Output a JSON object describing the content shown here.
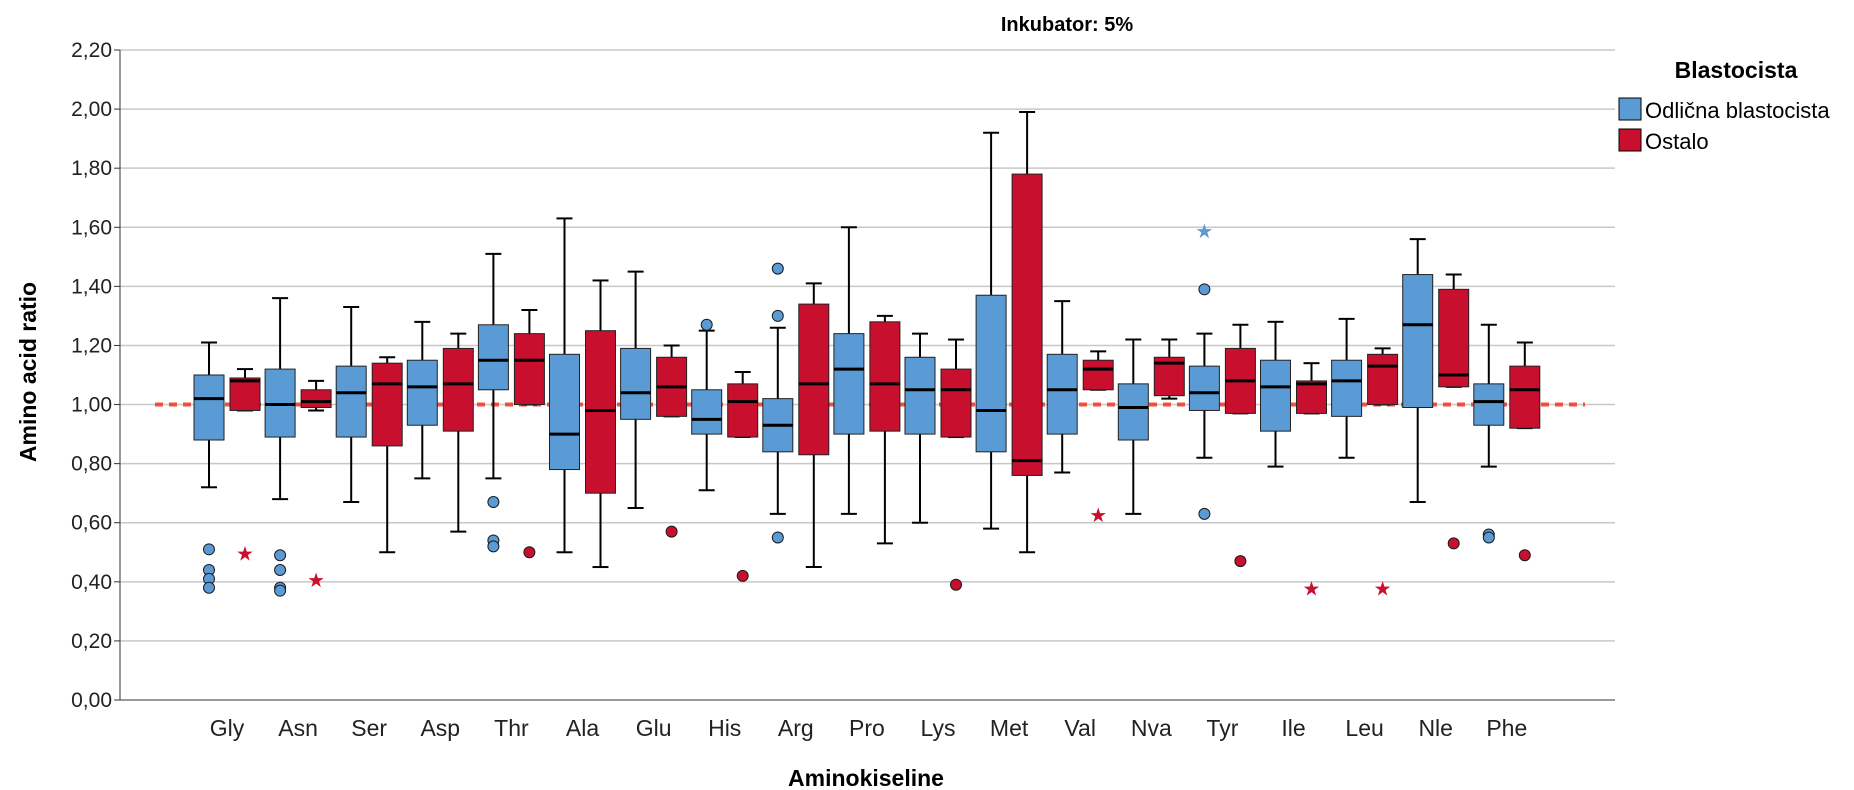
{
  "chart_data": {
    "type": "boxplot",
    "title": "Inkubator: 5%",
    "xlabel": "Aminokiseline",
    "ylabel": "Amino acid ratio",
    "ylim": [
      0,
      2.2
    ],
    "yticks": [
      "0,00",
      "0,20",
      "0,40",
      "0,60",
      "0,80",
      "1,00",
      "1,20",
      "1,40",
      "1,60",
      "1,80",
      "2,00",
      "2,20"
    ],
    "grid": "horizontal",
    "reference_line": 1.0,
    "legend": {
      "title": "Blastocista",
      "position": "right"
    },
    "series": [
      {
        "name": "Odlična blastocista",
        "color": "#5b9bd5"
      },
      {
        "name": "Ostalo",
        "color": "#c8102e"
      }
    ],
    "categories": [
      "Gly",
      "Asn",
      "Ser",
      "Asp",
      "Thr",
      "Ala",
      "Glu",
      "His",
      "Arg",
      "Pro",
      "Lys",
      "Met",
      "Val",
      "Nva",
      "Tyr",
      "Ile",
      "Leu",
      "Nle",
      "Phe"
    ],
    "boxes": [
      [
        {
          "whislo": 0.72,
          "q1": 0.88,
          "med": 1.02,
          "q3": 1.1,
          "whishi": 1.21,
          "outliers": [
            0.51,
            0.44,
            0.41,
            0.38
          ],
          "extremes": []
        },
        {
          "whislo": 0.98,
          "q1": 0.98,
          "med": 1.08,
          "q3": 1.09,
          "whishi": 1.12,
          "outliers": [],
          "extremes": [
            0.5
          ]
        }
      ],
      [
        {
          "whislo": 0.68,
          "q1": 0.89,
          "med": 1.0,
          "q3": 1.12,
          "whishi": 1.36,
          "outliers": [
            0.49,
            0.44,
            0.38,
            0.37
          ],
          "extremes": []
        },
        {
          "whislo": 0.98,
          "q1": 0.99,
          "med": 1.01,
          "q3": 1.05,
          "whishi": 1.08,
          "outliers": [],
          "extremes": [
            0.41
          ]
        }
      ],
      [
        {
          "whislo": 0.67,
          "q1": 0.89,
          "med": 1.04,
          "q3": 1.13,
          "whishi": 1.33,
          "outliers": [],
          "extremes": []
        },
        {
          "whislo": 0.5,
          "q1": 0.86,
          "med": 1.07,
          "q3": 1.14,
          "whishi": 1.16,
          "outliers": [],
          "extremes": []
        }
      ],
      [
        {
          "whislo": 0.75,
          "q1": 0.93,
          "med": 1.06,
          "q3": 1.15,
          "whishi": 1.28,
          "outliers": [],
          "extremes": []
        },
        {
          "whislo": 0.57,
          "q1": 0.91,
          "med": 1.07,
          "q3": 1.19,
          "whishi": 1.24,
          "outliers": [],
          "extremes": []
        }
      ],
      [
        {
          "whislo": 0.75,
          "q1": 1.05,
          "med": 1.15,
          "q3": 1.27,
          "whishi": 1.51,
          "outliers": [
            0.67,
            0.54,
            0.52
          ],
          "extremes": []
        },
        {
          "whislo": 1.0,
          "q1": 1.0,
          "med": 1.15,
          "q3": 1.24,
          "whishi": 1.32,
          "outliers": [
            0.5
          ],
          "extremes": []
        }
      ],
      [
        {
          "whislo": 0.5,
          "q1": 0.78,
          "med": 0.9,
          "q3": 1.17,
          "whishi": 1.63,
          "outliers": [],
          "extremes": []
        },
        {
          "whislo": 0.45,
          "q1": 0.7,
          "med": 0.98,
          "q3": 1.25,
          "whishi": 1.42,
          "outliers": [],
          "extremes": []
        }
      ],
      [
        {
          "whislo": 0.65,
          "q1": 0.95,
          "med": 1.04,
          "q3": 1.19,
          "whishi": 1.45,
          "outliers": [],
          "extremes": []
        },
        {
          "whislo": 0.96,
          "q1": 0.96,
          "med": 1.06,
          "q3": 1.16,
          "whishi": 1.2,
          "outliers": [
            0.57
          ],
          "extremes": []
        }
      ],
      [
        {
          "whislo": 0.71,
          "q1": 0.9,
          "med": 0.95,
          "q3": 1.05,
          "whishi": 1.25,
          "outliers": [
            1.27
          ],
          "extremes": []
        },
        {
          "whislo": 0.89,
          "q1": 0.89,
          "med": 1.01,
          "q3": 1.07,
          "whishi": 1.11,
          "outliers": [
            0.42
          ],
          "extremes": []
        }
      ],
      [
        {
          "whislo": 0.63,
          "q1": 0.84,
          "med": 0.93,
          "q3": 1.02,
          "whishi": 1.26,
          "outliers": [
            1.46,
            1.3,
            0.55
          ],
          "extremes": []
        },
        {
          "whislo": 0.45,
          "q1": 0.83,
          "med": 1.07,
          "q3": 1.34,
          "whishi": 1.41,
          "outliers": [],
          "extremes": []
        }
      ],
      [
        {
          "whislo": 0.63,
          "q1": 0.9,
          "med": 1.12,
          "q3": 1.24,
          "whishi": 1.6,
          "outliers": [],
          "extremes": []
        },
        {
          "whislo": 0.53,
          "q1": 0.91,
          "med": 1.07,
          "q3": 1.28,
          "whishi": 1.3,
          "outliers": [],
          "extremes": []
        }
      ],
      [
        {
          "whislo": 0.6,
          "q1": 0.9,
          "med": 1.05,
          "q3": 1.16,
          "whishi": 1.24,
          "outliers": [],
          "extremes": []
        },
        {
          "whislo": 0.89,
          "q1": 0.89,
          "med": 1.05,
          "q3": 1.12,
          "whishi": 1.22,
          "outliers": [
            0.39
          ],
          "extremes": []
        }
      ],
      [
        {
          "whislo": 0.58,
          "q1": 0.84,
          "med": 0.98,
          "q3": 1.37,
          "whishi": 1.92,
          "outliers": [],
          "extremes": []
        },
        {
          "whislo": 0.5,
          "q1": 0.76,
          "med": 0.81,
          "q3": 1.78,
          "whishi": 1.99,
          "outliers": [],
          "extremes": []
        }
      ],
      [
        {
          "whislo": 0.77,
          "q1": 0.9,
          "med": 1.05,
          "q3": 1.17,
          "whishi": 1.35,
          "outliers": [],
          "extremes": []
        },
        {
          "whislo": 1.05,
          "q1": 1.05,
          "med": 1.12,
          "q3": 1.15,
          "whishi": 1.18,
          "outliers": [],
          "extremes": [
            0.63
          ]
        }
      ],
      [
        {
          "whislo": 0.63,
          "q1": 0.88,
          "med": 0.99,
          "q3": 1.07,
          "whishi": 1.22,
          "outliers": [],
          "extremes": []
        },
        {
          "whislo": 1.02,
          "q1": 1.03,
          "med": 1.14,
          "q3": 1.16,
          "whishi": 1.22,
          "outliers": [],
          "extremes": []
        }
      ],
      [
        {
          "whislo": 0.82,
          "q1": 0.98,
          "med": 1.04,
          "q3": 1.13,
          "whishi": 1.24,
          "outliers": [
            1.39,
            0.63
          ],
          "extremes": [
            1.59
          ]
        },
        {
          "whislo": 0.97,
          "q1": 0.97,
          "med": 1.08,
          "q3": 1.19,
          "whishi": 1.27,
          "outliers": [
            0.47
          ],
          "extremes": []
        }
      ],
      [
        {
          "whislo": 0.79,
          "q1": 0.91,
          "med": 1.06,
          "q3": 1.15,
          "whishi": 1.28,
          "outliers": [],
          "extremes": []
        },
        {
          "whislo": 0.97,
          "q1": 0.97,
          "med": 1.07,
          "q3": 1.08,
          "whishi": 1.14,
          "outliers": [],
          "extremes": [
            0.38
          ]
        }
      ],
      [
        {
          "whislo": 0.82,
          "q1": 0.96,
          "med": 1.08,
          "q3": 1.15,
          "whishi": 1.29,
          "outliers": [],
          "extremes": []
        },
        {
          "whislo": 1.0,
          "q1": 1.0,
          "med": 1.13,
          "q3": 1.17,
          "whishi": 1.19,
          "outliers": [],
          "extremes": [
            0.38
          ]
        }
      ],
      [
        {
          "whislo": 0.67,
          "q1": 0.99,
          "med": 1.27,
          "q3": 1.44,
          "whishi": 1.56,
          "outliers": [],
          "extremes": []
        },
        {
          "whislo": 1.06,
          "q1": 1.06,
          "med": 1.1,
          "q3": 1.39,
          "whishi": 1.44,
          "outliers": [
            0.53
          ],
          "extremes": []
        }
      ],
      [
        {
          "whislo": 0.79,
          "q1": 0.93,
          "med": 1.01,
          "q3": 1.07,
          "whishi": 1.27,
          "outliers": [
            0.56,
            0.55
          ],
          "extremes": []
        },
        {
          "whislo": 0.92,
          "q1": 0.92,
          "med": 1.05,
          "q3": 1.13,
          "whishi": 1.21,
          "outliers": [
            0.49
          ],
          "extremes": []
        }
      ]
    ]
  }
}
